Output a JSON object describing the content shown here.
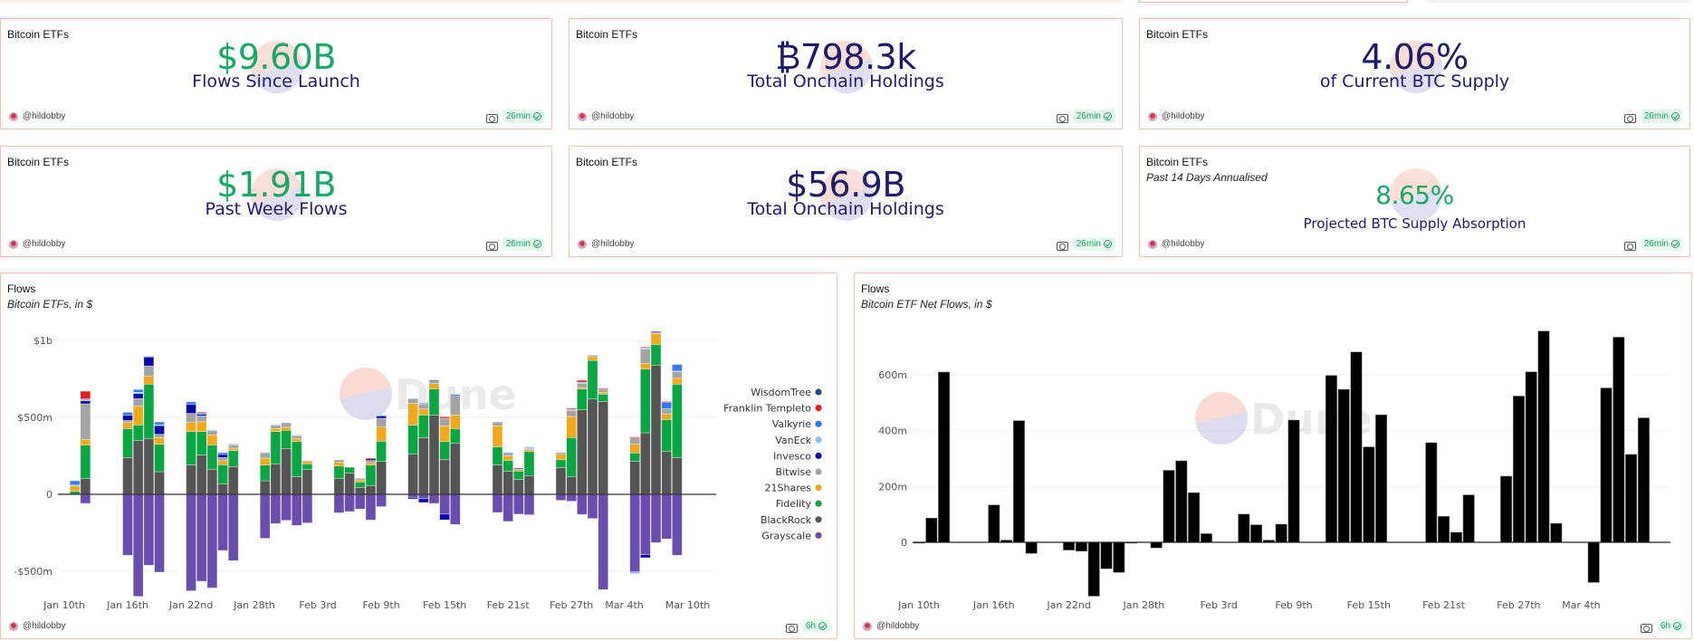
{
  "top_strip": {
    "colors": {
      "band": "#fdeeea",
      "box_border": "#f0b3a5",
      "pill": "#f1f1f3"
    }
  },
  "theme": {
    "card_border": "#f5bfae",
    "green": "#18a865",
    "navy": "#1e1b6b",
    "badge_bg": "#e6f7ee"
  },
  "stat_cards": [
    {
      "title": "Bitcoin ETFs",
      "subtitle": "",
      "value": "$9.60B",
      "value_color": "#18a865",
      "label": "Flows Since Launch",
      "author": "@hildobby",
      "freshness": "26min"
    },
    {
      "title": "Bitcoin ETFs",
      "subtitle": "",
      "value": "₿798.3k",
      "value_color": "#1e1b6b",
      "label": "Total Onchain Holdings",
      "author": "@hildobby",
      "freshness": "26min"
    },
    {
      "title": "Bitcoin ETFs",
      "subtitle": "",
      "value": "4.06%",
      "value_color": "#1e1b6b",
      "label": "of Current BTC Supply",
      "author": "@hildobby",
      "freshness": "26min"
    },
    {
      "title": "Bitcoin ETFs",
      "subtitle": "",
      "value": "$1.91B",
      "value_color": "#18a865",
      "label": "Past Week Flows",
      "author": "@hildobby",
      "freshness": "26min"
    },
    {
      "title": "Bitcoin ETFs",
      "subtitle": "",
      "value": "$56.9B",
      "value_color": "#1e1b6b",
      "label": "Total Onchain Holdings",
      "author": "@hildobby",
      "freshness": "26min"
    },
    {
      "title": "Bitcoin ETFs",
      "subtitle": "Past 14 Days Annualised",
      "value": "8.65%",
      "value_color": "#18a865",
      "label": "Projected BTC Supply Absorption",
      "author": "@hildobby",
      "freshness": "26min"
    }
  ],
  "watermark_text": "Dune",
  "chart_data": [
    {
      "type": "bar",
      "stacked": true,
      "title": "Flows",
      "subtitle": "Bitcoin ETFs, in $",
      "author": "@hildobby",
      "freshness": "6h",
      "xlabel": "",
      "ylabel": "",
      "ylim": [
        -720,
        1050
      ],
      "unit": "$m",
      "yticks": [
        {
          "value": 1000,
          "label": "$1b"
        },
        {
          "value": 500,
          "label": "$500m"
        },
        {
          "value": 0,
          "label": "0"
        },
        {
          "value": -500,
          "label": "-$500m"
        }
      ],
      "xticks": [
        "Jan 10th",
        "Jan 16th",
        "Jan 22nd",
        "Jan 28th",
        "Feb 3rd",
        "Feb 9th",
        "Feb 15th",
        "Feb 21st",
        "Feb 27th",
        "Mar 4th",
        "Mar 10th"
      ],
      "xtick_day_index": [
        0,
        6,
        12,
        18,
        24,
        30,
        36,
        42,
        48,
        53,
        59
      ],
      "grid": true,
      "legend_position": "right",
      "legend": [
        {
          "name": "WisdomTree",
          "color": "#1f4e8c"
        },
        {
          "name": "Franklin Templeto",
          "color": "#ee1c1c"
        },
        {
          "name": "Valkyrie",
          "color": "#3478f6"
        },
        {
          "name": "VanEck",
          "color": "#8fbcf7"
        },
        {
          "name": "Invesco",
          "color": "#0a0aa8"
        },
        {
          "name": "Bitwise",
          "color": "#a3a3a3"
        },
        {
          "name": "21Shares",
          "color": "#f0a81c"
        },
        {
          "name": "Fidelity",
          "color": "#0aa644"
        },
        {
          "name": "BlackRock",
          "color": "#555555"
        },
        {
          "name": "Grayscale",
          "color": "#6a4ead"
        }
      ],
      "stack_order": [
        "BlackRock",
        "Fidelity",
        "21Shares",
        "Bitwise",
        "Invesco",
        "VanEck",
        "Valkyrie",
        "Franklin Templeto",
        "WisdomTree"
      ],
      "days": [
        {
          "date": "Jan 10",
          "day": 0,
          "values": {
            "Franklin Templeto": 5
          }
        },
        {
          "date": "Jan 11",
          "day": 1,
          "values": {
            "Fidelity": 20,
            "21Shares": 35,
            "Valkyrie": 28,
            "VanEck": 5
          }
        },
        {
          "date": "Jan 12",
          "day": 2,
          "values": {
            "BlackRock": 102,
            "Fidelity": 218,
            "21Shares": 37,
            "Bitwise": 231,
            "Invesco": 20,
            "VanEck": 6,
            "Valkyrie": 6,
            "Franklin Templeto": 50,
            "Grayscale": -59
          }
        },
        {
          "date": "Jan 16",
          "day": 6,
          "values": {
            "BlackRock": 239,
            "Fidelity": 188,
            "21Shares": 39,
            "Bitwise": 14,
            "Invesco": 33,
            "Valkyrie": 20,
            "Grayscale": -396
          }
        },
        {
          "date": "Jan 17",
          "day": 7,
          "values": {
            "BlackRock": 351,
            "Fidelity": 100,
            "21Shares": 122,
            "Bitwise": 49,
            "Invesco": 33,
            "Valkyrie": 18,
            "VanEck": 8,
            "Grayscale": -663
          }
        },
        {
          "date": "Jan 18",
          "day": 8,
          "values": {
            "BlackRock": 363,
            "Fidelity": 353,
            "21Shares": 51,
            "Bitwise": 67,
            "Invesco": 59,
            "VanEck": 5,
            "Grayscale": -461
          }
        },
        {
          "date": "Jan 19",
          "day": 9,
          "values": {
            "BlackRock": 147,
            "Fidelity": 178,
            "21Shares": 43,
            "Bitwise": 22,
            "Invesco": 57,
            "Valkyrie": 18,
            "VanEck": 5,
            "Grayscale": -506
          }
        },
        {
          "date": "Jan 22",
          "day": 12,
          "values": {
            "BlackRock": 192,
            "Fidelity": 216,
            "21Shares": 59,
            "Bitwise": 59,
            "Invesco": 59,
            "Valkyrie": 16,
            "Grayscale": -627
          }
        },
        {
          "date": "Jan 23",
          "day": 13,
          "values": {
            "BlackRock": 255,
            "Fidelity": 153,
            "21Shares": 63,
            "Bitwise": 39,
            "Invesco": 10,
            "Valkyrie": 10,
            "Franklin Templeto": 4,
            "Grayscale": -565
          }
        },
        {
          "date": "Jan 24",
          "day": 14,
          "values": {
            "BlackRock": 163,
            "Fidelity": 157,
            "21Shares": 65,
            "Bitwise": 29,
            "VanEck": 4,
            "Grayscale": -608
          }
        },
        {
          "date": "Jan 25",
          "day": 15,
          "values": {
            "BlackRock": 67,
            "Fidelity": 125,
            "21Shares": 27,
            "Bitwise": 20,
            "Invesco": 20,
            "Valkyrie": 12,
            "Grayscale": -365
          }
        },
        {
          "date": "Jan 26",
          "day": 16,
          "values": {
            "BlackRock": 180,
            "Fidelity": 104,
            "21Shares": 16,
            "Bitwise": 20,
            "VanEck": 8,
            "Grayscale": -431
          }
        },
        {
          "date": "Jan 27",
          "day": 17,
          "values": {
            "VanEck": 2
          }
        },
        {
          "date": "Jan 29",
          "day": 19,
          "values": {
            "BlackRock": 88,
            "Fidelity": 102,
            "21Shares": 45,
            "Bitwise": 35,
            "VanEck": 4,
            "Grayscale": -286
          }
        },
        {
          "date": "Jan 30",
          "day": 20,
          "values": {
            "BlackRock": 196,
            "Fidelity": 212,
            "21Shares": 20,
            "Bitwise": 20,
            "VanEck": 6,
            "Grayscale": -190
          }
        },
        {
          "date": "Jan 31",
          "day": 21,
          "values": {
            "BlackRock": 298,
            "Fidelity": 118,
            "21Shares": 20,
            "Bitwise": 20,
            "Invesco": 6,
            "Grayscale": -169
          }
        },
        {
          "date": "Feb 1",
          "day": 22,
          "values": {
            "BlackRock": 114,
            "Fidelity": 229,
            "21Shares": 18,
            "Bitwise": 20,
            "VanEck": 4,
            "Grayscale": -202
          }
        },
        {
          "date": "Feb 2",
          "day": 23,
          "values": {
            "BlackRock": 161,
            "Fidelity": 37,
            "21Shares": 18,
            "Bitwise": 4,
            "Grayscale": -186
          }
        },
        {
          "date": "Feb 5",
          "day": 26,
          "values": {
            "BlackRock": 102,
            "Fidelity": 82,
            "21Shares": 24,
            "Bitwise": 16,
            "Grayscale": -120
          }
        },
        {
          "date": "Feb 6",
          "day": 27,
          "values": {
            "BlackRock": 137,
            "Fidelity": 39,
            "Grayscale": -112
          }
        },
        {
          "date": "Feb 7",
          "day": 28,
          "values": {
            "BlackRock": 45,
            "Fidelity": 35,
            "21Shares": 14,
            "Bitwise": 10,
            "Grayscale": -96
          }
        },
        {
          "date": "Feb 8",
          "day": 29,
          "values": {
            "BlackRock": 57,
            "Fidelity": 133,
            "21Shares": 16,
            "Bitwise": 14,
            "Invesco": 12,
            "Franklin Templeto": 4,
            "Grayscale": -167
          }
        },
        {
          "date": "Feb 9",
          "day": 30,
          "values": {
            "BlackRock": 214,
            "Fidelity": 131,
            "21Shares": 92,
            "Bitwise": 57,
            "Invesco": 16,
            "VanEck": 5,
            "Grayscale": -80
          }
        },
        {
          "date": "Feb 12",
          "day": 33,
          "values": {
            "BlackRock": 261,
            "Fidelity": 188,
            "21Shares": 143,
            "Bitwise": 29,
            "VanEck": 4,
            "Grayscale": -20,
            "Invesco": -10
          }
        },
        {
          "date": "Feb 13",
          "day": 34,
          "values": {
            "BlackRock": 368,
            "Fidelity": 147,
            "21Shares": 39,
            "Bitwise": 33,
            "VanEck": 10,
            "Grayscale": -29,
            "Invesco": -24
          }
        },
        {
          "date": "Feb 14",
          "day": 35,
          "values": {
            "BlackRock": 514,
            "Fidelity": 171,
            "21Shares": 35,
            "Bitwise": 16,
            "Invesco": 4,
            "Grayscale": -59
          }
        },
        {
          "date": "Feb 15",
          "day": 36,
          "values": {
            "BlackRock": 225,
            "Fidelity": 118,
            "21Shares": 102,
            "Bitwise": 49,
            "Franklin Templeto": 10,
            "Grayscale": -129,
            "Invesco": -37
          }
        },
        {
          "date": "Feb 16",
          "day": 37,
          "values": {
            "BlackRock": 331,
            "Fidelity": 96,
            "21Shares": 88,
            "Bitwise": 124,
            "Invesco": 8,
            "VanEck": 4,
            "Grayscale": -196
          }
        },
        {
          "date": "Feb 20",
          "day": 41,
          "values": {
            "BlackRock": 190,
            "Fidelity": 118,
            "21Shares": 137,
            "Bitwise": 25,
            "Grayscale": -118
          }
        },
        {
          "date": "Feb 21",
          "day": 42,
          "values": {
            "BlackRock": 151,
            "Fidelity": 69,
            "21Shares": 31,
            "Bitwise": 10,
            "Invesco": 6,
            "Valkyrie": 4,
            "Grayscale": -176
          }
        },
        {
          "date": "Feb 22",
          "day": 43,
          "values": {
            "BlackRock": 98,
            "Fidelity": 53,
            "21Shares": 12,
            "Bitwise": 4,
            "Invesco": 3,
            "Grayscale": -129
          }
        },
        {
          "date": "Feb 23",
          "day": 44,
          "values": {
            "BlackRock": 122,
            "Fidelity": 157,
            "21Shares": 12,
            "Bitwise": 8,
            "VanEck": 10,
            "Grayscale": -133
          }
        },
        {
          "date": "Feb 26",
          "day": 47,
          "values": {
            "BlackRock": 174,
            "Fidelity": 51,
            "21Shares": 35,
            "Bitwise": 12,
            "Grayscale": -39
          }
        },
        {
          "date": "Feb 27",
          "day": 48,
          "values": {
            "BlackRock": 116,
            "Fidelity": 253,
            "21Shares": 137,
            "Bitwise": 39,
            "VanEck": 10,
            "Franklin Templeto": 4,
            "Grayscale": -45
          }
        },
        {
          "date": "Feb 28",
          "day": 49,
          "values": {
            "BlackRock": 549,
            "Fidelity": 135,
            "21Shares": 10,
            "Bitwise": 27,
            "VanEck": 8,
            "Franklin Templeto": 12,
            "Grayscale": -131
          }
        },
        {
          "date": "Feb 29",
          "day": 50,
          "values": {
            "BlackRock": 619,
            "Fidelity": 251,
            "21Shares": 25,
            "Bitwise": 10,
            "Grayscale": -157
          }
        },
        {
          "date": "Mar 1",
          "day": 51,
          "values": {
            "BlackRock": 602,
            "Fidelity": 49,
            "21Shares": 10,
            "Bitwise": 22,
            "Franklin Templeto": 4,
            "Grayscale": -619
          }
        },
        {
          "date": "Mar 4",
          "day": 54,
          "values": {
            "BlackRock": 214,
            "Fidelity": 55,
            "21Shares": 57,
            "Bitwise": 43,
            "Franklin Templeto": 4,
            "Grayscale": -504,
            "VanEck": -12
          }
        },
        {
          "date": "Mar 5",
          "day": 55,
          "values": {
            "BlackRock": 400,
            "Fidelity": 414,
            "21Shares": 37,
            "Bitwise": 92,
            "VanEck": 10,
            "Franklin Templeto": 4,
            "Grayscale": -392,
            "Invesco": -20
          }
        },
        {
          "date": "Mar 6",
          "day": 56,
          "values": {
            "BlackRock": 837,
            "Fidelity": 137,
            "21Shares": 71,
            "Bitwise": 10,
            "Invesco": 3,
            "Grayscale": -314
          }
        },
        {
          "date": "Mar 7",
          "day": 57,
          "values": {
            "BlackRock": 278,
            "Fidelity": 208,
            "21Shares": 37,
            "Bitwise": 33,
            "Valkyrie": 43,
            "Franklin Templeto": 4,
            "Grayscale": -290
          }
        },
        {
          "date": "Mar 8",
          "day": 58,
          "values": {
            "BlackRock": 239,
            "Fidelity": 476,
            "21Shares": 39,
            "Bitwise": 43,
            "Valkyrie": 43,
            "VanEck": 4,
            "Grayscale": -396
          }
        }
      ]
    },
    {
      "type": "bar",
      "title": "Flows",
      "subtitle": "Bitcoin ETF Net Flows, in $",
      "author": "@hildobby",
      "freshness": "6h",
      "xlabel": "",
      "ylabel": "",
      "unit": "$m",
      "ylim": [
        -210,
        780
      ],
      "yticks": [
        {
          "value": 600,
          "label": "600m"
        },
        {
          "value": 400,
          "label": "400m"
        },
        {
          "value": 200,
          "label": "200m"
        },
        {
          "value": 0,
          "label": "0"
        }
      ],
      "xticks": [
        "Jan 10th",
        "Jan 16th",
        "Jan 22nd",
        "Jan 28th",
        "Feb 3rd",
        "Feb 9th",
        "Feb 15th",
        "Feb 21st",
        "Feb 27th",
        "Mar 4th"
      ],
      "xtick_day_index": [
        0,
        6,
        12,
        18,
        24,
        30,
        36,
        42,
        48,
        53
      ],
      "grid": true,
      "bar_color": "#000000",
      "categories": [
        "Jan 10",
        "Jan 11",
        "Jan 12",
        "Jan 16",
        "Jan 17",
        "Jan 18",
        "Jan 19",
        "Jan 22",
        "Jan 23",
        "Jan 24",
        "Jan 25",
        "Jan 26",
        "Jan 27",
        "Jan 29",
        "Jan 30",
        "Jan 31",
        "Feb 1",
        "Feb 2",
        "Feb 5",
        "Feb 6",
        "Feb 7",
        "Feb 8",
        "Feb 9",
        "Feb 12",
        "Feb 13",
        "Feb 14",
        "Feb 15",
        "Feb 16",
        "Feb 20",
        "Feb 21",
        "Feb 22",
        "Feb 23",
        "Feb 26",
        "Feb 27",
        "Feb 28",
        "Feb 29",
        "Mar 1",
        "Mar 4",
        "Mar 5",
        "Mar 6",
        "Mar 7",
        "Mar 8"
      ],
      "day_index": [
        0,
        1,
        2,
        6,
        7,
        8,
        9,
        12,
        13,
        14,
        15,
        16,
        17,
        19,
        20,
        21,
        22,
        23,
        26,
        27,
        28,
        29,
        30,
        33,
        34,
        35,
        36,
        37,
        41,
        42,
        43,
        44,
        47,
        48,
        49,
        50,
        51,
        54,
        55,
        56,
        57,
        58
      ],
      "values": [
        0,
        87,
        610,
        134,
        8,
        436,
        -40,
        -28,
        -32,
        -193,
        -95,
        -108,
        0,
        -20,
        258,
        292,
        178,
        31,
        101,
        63,
        8,
        65,
        438,
        598,
        548,
        682,
        342,
        457,
        357,
        93,
        36,
        170,
        237,
        524,
        611,
        757,
        68,
        -144,
        553,
        735,
        315,
        446
      ]
    }
  ]
}
